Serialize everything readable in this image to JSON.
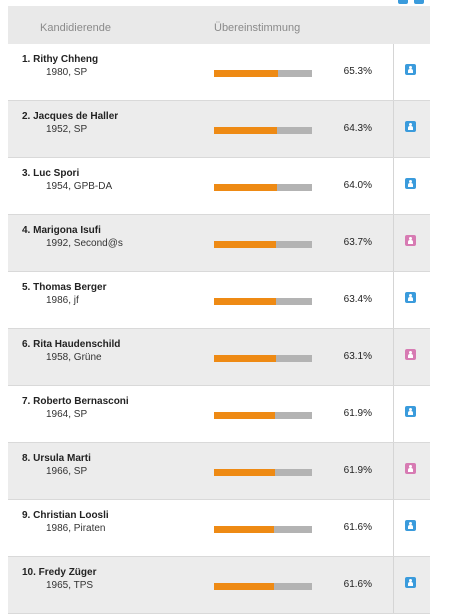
{
  "header": {
    "name_col": "Kandidierende",
    "match_col": "Übereinstimmung"
  },
  "colors": {
    "bar_fill": "#ee8a14",
    "bar_track": "#b3b3b3",
    "male_icon": "#3a9bdc",
    "female_icon": "#d77bb3"
  },
  "candidates": [
    {
      "name": "1. Rithy Chheng",
      "meta": "1980, SP",
      "pct": "65.3%",
      "value": 65.3,
      "icon": "male-person-icon"
    },
    {
      "name": "2. Jacques de Haller",
      "meta": "1952, SP",
      "pct": "64.3%",
      "value": 64.3,
      "icon": "male-person-icon"
    },
    {
      "name": "3. Luc Spori",
      "meta": "1954, GPB-DA",
      "pct": "64.0%",
      "value": 64.0,
      "icon": "male-person-icon"
    },
    {
      "name": "4. Marigona Isufi",
      "meta": "1992, Second@s",
      "pct": "63.7%",
      "value": 63.7,
      "icon": "female-person-icon"
    },
    {
      "name": "5. Thomas Berger",
      "meta": "1986, jf",
      "pct": "63.4%",
      "value": 63.4,
      "icon": "male-person-icon"
    },
    {
      "name": "6. Rita Haudenschild",
      "meta": "1958, Grüne",
      "pct": "63.1%",
      "value": 63.1,
      "icon": "female-person-icon"
    },
    {
      "name": "7. Roberto Bernasconi",
      "meta": "1964, SP",
      "pct": "61.9%",
      "value": 61.9,
      "icon": "male-person-icon"
    },
    {
      "name": "8. Ursula Marti",
      "meta": "1966, SP",
      "pct": "61.9%",
      "value": 61.9,
      "icon": "female-person-icon"
    },
    {
      "name": "9. Christian Loosli",
      "meta": "1986, Piraten",
      "pct": "61.6%",
      "value": 61.6,
      "icon": "male-person-icon"
    },
    {
      "name": "10. Fredy Züger",
      "meta": "1965, TPS",
      "pct": "61.6%",
      "value": 61.6,
      "icon": "male-person-icon"
    }
  ]
}
